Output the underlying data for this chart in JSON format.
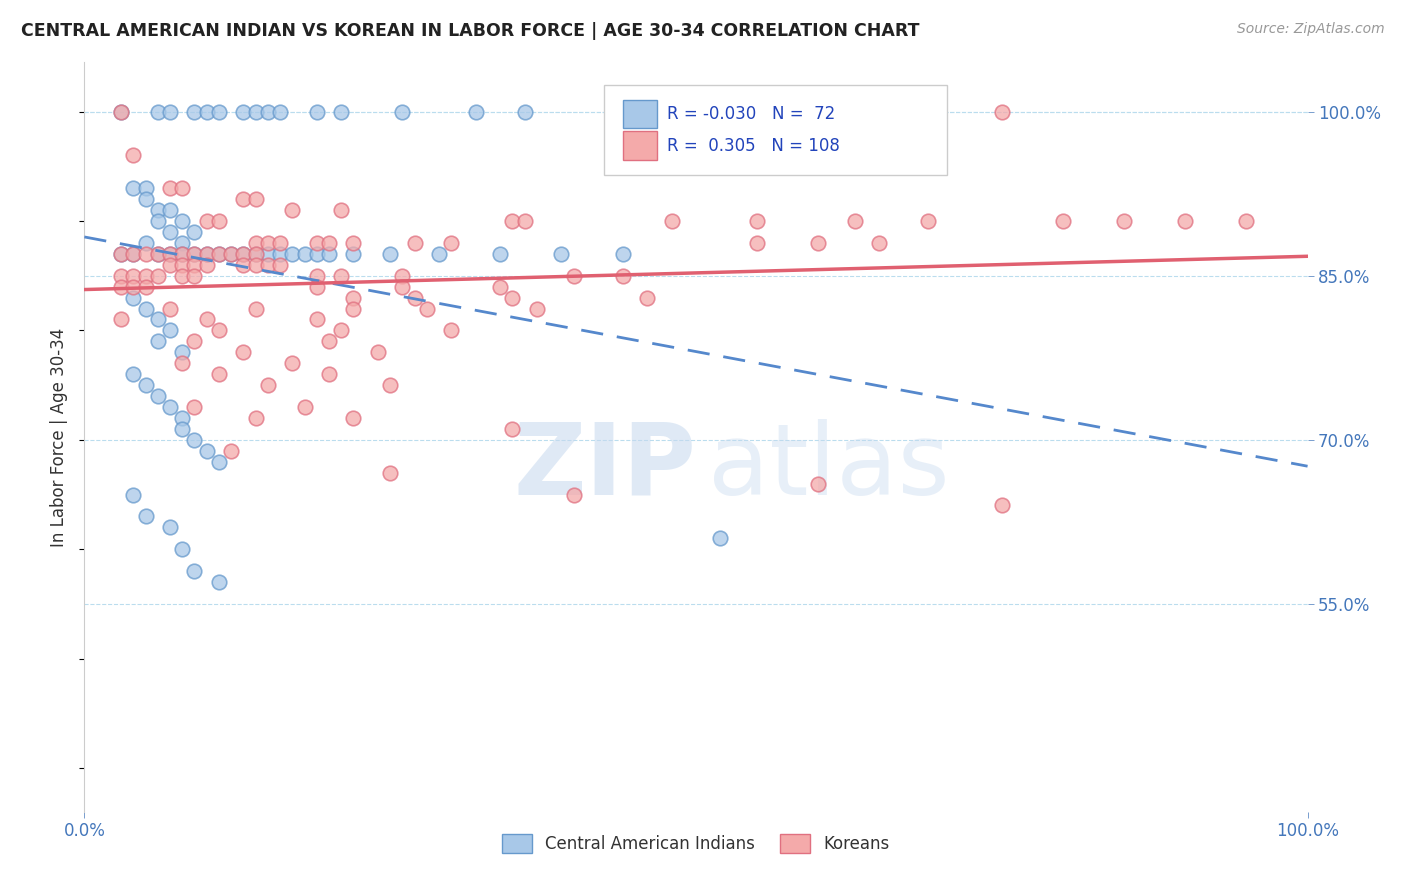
{
  "title": "CENTRAL AMERICAN INDIAN VS KOREAN IN LABOR FORCE | AGE 30-34 CORRELATION CHART",
  "source": "Source: ZipAtlas.com",
  "ylabel": "In Labor Force | Age 30-34",
  "xmin": 0.0,
  "xmax": 1.0,
  "ymin": 0.36,
  "ymax": 1.045,
  "ytick_values": [
    0.55,
    0.7,
    0.85,
    1.0
  ],
  "watermark_zip": "ZIP",
  "watermark_atlas": "atlas",
  "legend_blue_label": "Central American Indians",
  "legend_pink_label": "Koreans",
  "R_blue": -0.03,
  "N_blue": 72,
  "R_pink": 0.305,
  "N_pink": 108,
  "blue_fill": "#a8c8e8",
  "blue_edge": "#6699cc",
  "pink_fill": "#f4aaaa",
  "pink_edge": "#e07080",
  "blue_line": "#5588cc",
  "pink_line": "#e06070",
  "blue_scatter": [
    [
      0.03,
      1.0
    ],
    [
      0.06,
      1.0
    ],
    [
      0.07,
      1.0
    ],
    [
      0.09,
      1.0
    ],
    [
      0.1,
      1.0
    ],
    [
      0.11,
      1.0
    ],
    [
      0.13,
      1.0
    ],
    [
      0.14,
      1.0
    ],
    [
      0.15,
      1.0
    ],
    [
      0.16,
      1.0
    ],
    [
      0.19,
      1.0
    ],
    [
      0.21,
      1.0
    ],
    [
      0.26,
      1.0
    ],
    [
      0.32,
      1.0
    ],
    [
      0.36,
      1.0
    ],
    [
      0.49,
      1.0
    ],
    [
      0.59,
      1.0
    ],
    [
      0.04,
      0.93
    ],
    [
      0.05,
      0.93
    ],
    [
      0.05,
      0.92
    ],
    [
      0.06,
      0.91
    ],
    [
      0.06,
      0.9
    ],
    [
      0.07,
      0.91
    ],
    [
      0.07,
      0.89
    ],
    [
      0.08,
      0.9
    ],
    [
      0.08,
      0.88
    ],
    [
      0.09,
      0.89
    ],
    [
      0.03,
      0.87
    ],
    [
      0.04,
      0.87
    ],
    [
      0.05,
      0.88
    ],
    [
      0.06,
      0.87
    ],
    [
      0.07,
      0.87
    ],
    [
      0.08,
      0.87
    ],
    [
      0.09,
      0.87
    ],
    [
      0.1,
      0.87
    ],
    [
      0.11,
      0.87
    ],
    [
      0.12,
      0.87
    ],
    [
      0.13,
      0.87
    ],
    [
      0.14,
      0.87
    ],
    [
      0.15,
      0.87
    ],
    [
      0.16,
      0.87
    ],
    [
      0.17,
      0.87
    ],
    [
      0.18,
      0.87
    ],
    [
      0.19,
      0.87
    ],
    [
      0.2,
      0.87
    ],
    [
      0.22,
      0.87
    ],
    [
      0.25,
      0.87
    ],
    [
      0.29,
      0.87
    ],
    [
      0.34,
      0.87
    ],
    [
      0.39,
      0.87
    ],
    [
      0.44,
      0.87
    ],
    [
      0.04,
      0.83
    ],
    [
      0.05,
      0.82
    ],
    [
      0.06,
      0.81
    ],
    [
      0.06,
      0.79
    ],
    [
      0.07,
      0.8
    ],
    [
      0.08,
      0.78
    ],
    [
      0.04,
      0.76
    ],
    [
      0.05,
      0.75
    ],
    [
      0.06,
      0.74
    ],
    [
      0.07,
      0.73
    ],
    [
      0.08,
      0.72
    ],
    [
      0.08,
      0.71
    ],
    [
      0.09,
      0.7
    ],
    [
      0.1,
      0.69
    ],
    [
      0.11,
      0.68
    ],
    [
      0.04,
      0.65
    ],
    [
      0.05,
      0.63
    ],
    [
      0.07,
      0.62
    ],
    [
      0.08,
      0.6
    ],
    [
      0.09,
      0.58
    ],
    [
      0.11,
      0.57
    ],
    [
      0.52,
      0.61
    ]
  ],
  "pink_scatter": [
    [
      0.03,
      1.0
    ],
    [
      0.49,
      1.0
    ],
    [
      0.52,
      1.0
    ],
    [
      0.75,
      1.0
    ],
    [
      0.04,
      0.96
    ],
    [
      0.07,
      0.93
    ],
    [
      0.08,
      0.93
    ],
    [
      0.13,
      0.92
    ],
    [
      0.14,
      0.92
    ],
    [
      0.17,
      0.91
    ],
    [
      0.21,
      0.91
    ],
    [
      0.1,
      0.9
    ],
    [
      0.11,
      0.9
    ],
    [
      0.35,
      0.9
    ],
    [
      0.36,
      0.9
    ],
    [
      0.48,
      0.9
    ],
    [
      0.55,
      0.9
    ],
    [
      0.63,
      0.9
    ],
    [
      0.69,
      0.9
    ],
    [
      0.8,
      0.9
    ],
    [
      0.85,
      0.9
    ],
    [
      0.9,
      0.9
    ],
    [
      0.95,
      0.9
    ],
    [
      0.14,
      0.88
    ],
    [
      0.15,
      0.88
    ],
    [
      0.16,
      0.88
    ],
    [
      0.19,
      0.88
    ],
    [
      0.2,
      0.88
    ],
    [
      0.22,
      0.88
    ],
    [
      0.27,
      0.88
    ],
    [
      0.3,
      0.88
    ],
    [
      0.55,
      0.88
    ],
    [
      0.6,
      0.88
    ],
    [
      0.65,
      0.88
    ],
    [
      0.03,
      0.87
    ],
    [
      0.04,
      0.87
    ],
    [
      0.05,
      0.87
    ],
    [
      0.06,
      0.87
    ],
    [
      0.07,
      0.87
    ],
    [
      0.08,
      0.87
    ],
    [
      0.09,
      0.87
    ],
    [
      0.1,
      0.87
    ],
    [
      0.11,
      0.87
    ],
    [
      0.12,
      0.87
    ],
    [
      0.13,
      0.87
    ],
    [
      0.14,
      0.87
    ],
    [
      0.07,
      0.86
    ],
    [
      0.08,
      0.86
    ],
    [
      0.09,
      0.86
    ],
    [
      0.1,
      0.86
    ],
    [
      0.13,
      0.86
    ],
    [
      0.14,
      0.86
    ],
    [
      0.15,
      0.86
    ],
    [
      0.16,
      0.86
    ],
    [
      0.03,
      0.85
    ],
    [
      0.04,
      0.85
    ],
    [
      0.05,
      0.85
    ],
    [
      0.06,
      0.85
    ],
    [
      0.08,
      0.85
    ],
    [
      0.09,
      0.85
    ],
    [
      0.19,
      0.85
    ],
    [
      0.21,
      0.85
    ],
    [
      0.26,
      0.85
    ],
    [
      0.4,
      0.85
    ],
    [
      0.44,
      0.85
    ],
    [
      0.03,
      0.84
    ],
    [
      0.04,
      0.84
    ],
    [
      0.05,
      0.84
    ],
    [
      0.19,
      0.84
    ],
    [
      0.26,
      0.84
    ],
    [
      0.34,
      0.84
    ],
    [
      0.22,
      0.83
    ],
    [
      0.27,
      0.83
    ],
    [
      0.35,
      0.83
    ],
    [
      0.46,
      0.83
    ],
    [
      0.07,
      0.82
    ],
    [
      0.14,
      0.82
    ],
    [
      0.22,
      0.82
    ],
    [
      0.28,
      0.82
    ],
    [
      0.37,
      0.82
    ],
    [
      0.03,
      0.81
    ],
    [
      0.1,
      0.81
    ],
    [
      0.19,
      0.81
    ],
    [
      0.11,
      0.8
    ],
    [
      0.21,
      0.8
    ],
    [
      0.3,
      0.8
    ],
    [
      0.09,
      0.79
    ],
    [
      0.2,
      0.79
    ],
    [
      0.13,
      0.78
    ],
    [
      0.24,
      0.78
    ],
    [
      0.08,
      0.77
    ],
    [
      0.17,
      0.77
    ],
    [
      0.11,
      0.76
    ],
    [
      0.2,
      0.76
    ],
    [
      0.15,
      0.75
    ],
    [
      0.25,
      0.75
    ],
    [
      0.09,
      0.73
    ],
    [
      0.18,
      0.73
    ],
    [
      0.14,
      0.72
    ],
    [
      0.22,
      0.72
    ],
    [
      0.35,
      0.71
    ],
    [
      0.12,
      0.69
    ],
    [
      0.25,
      0.67
    ],
    [
      0.6,
      0.66
    ],
    [
      0.75,
      0.64
    ],
    [
      0.4,
      0.65
    ]
  ]
}
